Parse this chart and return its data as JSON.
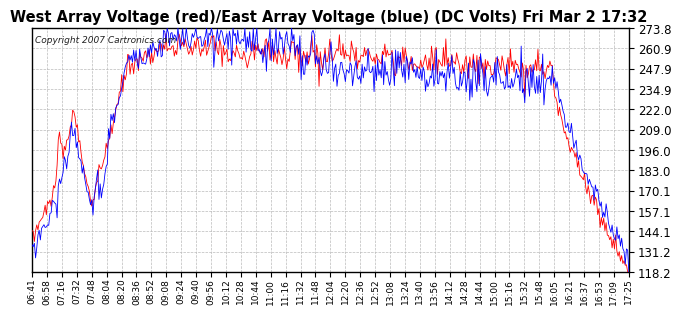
{
  "title": "West Array Voltage (red)/East Array Voltage (blue) (DC Volts) Fri Mar 2 17:32",
  "copyright": "Copyright 2007 Cartronics.com",
  "yticks": [
    118.2,
    131.2,
    144.1,
    157.1,
    170.1,
    183.0,
    196.0,
    209.0,
    222.0,
    234.9,
    247.9,
    260.9,
    273.8
  ],
  "xtick_labels": [
    "06:41",
    "06:58",
    "07:16",
    "07:32",
    "07:48",
    "08:04",
    "08:20",
    "08:36",
    "08:52",
    "09:08",
    "09:24",
    "09:40",
    "09:56",
    "10:12",
    "10:28",
    "10:44",
    "11:00",
    "11:16",
    "11:32",
    "11:48",
    "12:04",
    "12:20",
    "12:36",
    "12:52",
    "13:08",
    "13:24",
    "13:40",
    "13:56",
    "14:12",
    "14:28",
    "14:44",
    "15:00",
    "15:16",
    "15:32",
    "15:48",
    "16:05",
    "16:21",
    "16:37",
    "16:53",
    "17:09",
    "17:25"
  ],
  "bg_color": "#ffffff",
  "plot_bg_color": "#ffffff",
  "grid_color": "#bbbbbb",
  "red_color": "#ff0000",
  "blue_color": "#0000ff",
  "title_color": "#000000",
  "ymin": 118.2,
  "ymax": 273.8,
  "title_fontsize": 10.5,
  "copyright_fontsize": 6.5,
  "ytick_fontsize": 8.5,
  "xtick_fontsize": 6.5
}
